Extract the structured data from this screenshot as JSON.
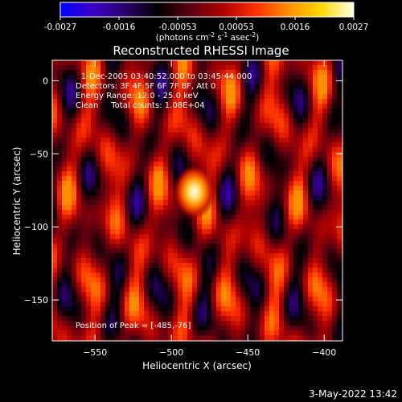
{
  "colorbar": {
    "tick_labels": [
      "-0.0027",
      "-0.0016",
      "-0.00053",
      "0.00053",
      "0.0016",
      "0.0027"
    ],
    "units": "(photons cm",
    "units_sup1": "-2",
    "units_mid": " s",
    "units_sup2": "-1",
    "units_end": " asec",
    "units_sup3": "-2",
    "units_close": ")",
    "colormap": [
      "#0000ff",
      "#3a00c8",
      "#2a006a",
      "#000000",
      "#5a0010",
      "#b00000",
      "#ff3000",
      "#ff9000",
      "#ffd800",
      "#ffffe8"
    ]
  },
  "chart_data": {
    "type": "heatmap",
    "title": "Reconstructed RHESSI Image",
    "xlabel": "Heliocentric X (arcsec)",
    "ylabel": "Heliocentric Y (arcsec)",
    "xlim": [
      -578,
      -388
    ],
    "ylim": [
      -178,
      14
    ],
    "x_ticks": [
      -550,
      -500,
      -450,
      -400
    ],
    "y_ticks": [
      0,
      -50,
      -100,
      -150
    ],
    "value_range": [
      -0.0027,
      0.0027
    ],
    "peak": {
      "x": -485,
      "y": -76
    },
    "annotations": {
      "time_range": "1-Dec-2005 03:40:52.000 to 03:45:44.000",
      "detectors": "Detectors: 3F 4F 5F 6F 7F 8F, Att 0",
      "energy": "Energy Range: 12.0 - 25.0 keV",
      "clean": "Clean     Total counts: 1.08E+04",
      "peak_text": "Position of Peak = [-485,-76]"
    }
  },
  "footer": {
    "timestamp": "3-May-2022 13:42"
  }
}
